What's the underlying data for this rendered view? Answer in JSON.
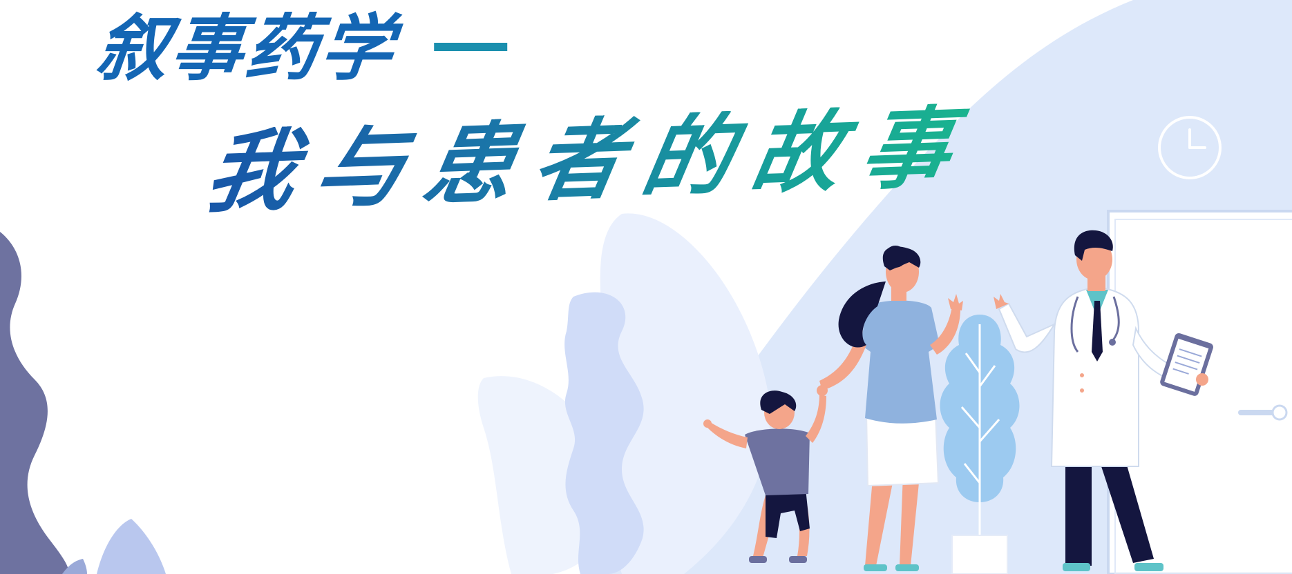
{
  "banner": {
    "title": "叙事药学",
    "subtitle": "我与患者的故事"
  },
  "colors": {
    "title": "#1466b4",
    "dash": "#1a8fae",
    "subtitle_start": "#1856a8",
    "subtitle_end": "#1ab48e",
    "bg_shape": "#dde8fa",
    "leaf_light": "#eaf0fd",
    "leaf_mid": "#d0dcf8",
    "wave_left": "#6e72a0",
    "shirt": "#8fb2de",
    "skin": "#f4a58a",
    "hair": "#14163f"
  },
  "icons": [
    "clock-icon",
    "clipboard-icon",
    "stethoscope-icon",
    "door-handle-icon"
  ]
}
